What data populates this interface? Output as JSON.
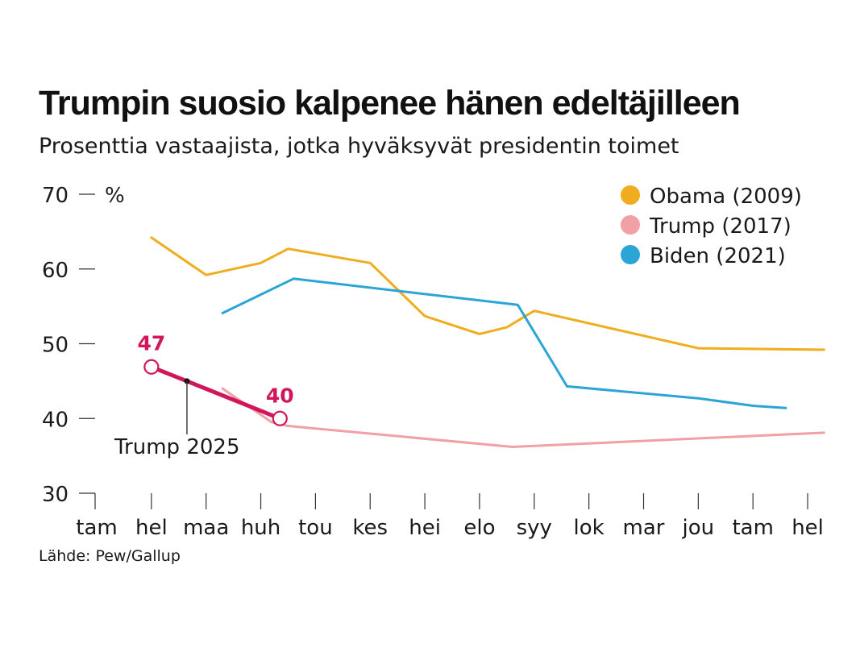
{
  "title": "Trumpin suosio kalpenee hänen edeltäjilleen",
  "subtitle": "Prosenttia vastaajista, jotka hyväksyvät presidentin toimet",
  "source": "Lähde: Pew/Gallup",
  "chart_data": {
    "type": "line",
    "ylabel": "%",
    "ylim": [
      30,
      70
    ],
    "yticks": [
      30,
      40,
      50,
      60,
      70
    ],
    "categories": [
      "tam",
      "hel",
      "maa",
      "huh",
      "tou",
      "kes",
      "hei",
      "elo",
      "syy",
      "lok",
      "mar",
      "jou",
      "tam",
      "hel"
    ],
    "grid": false,
    "legend_position": "top-right",
    "series": [
      {
        "name": "Obama (2009)",
        "color": "#f0ad1f",
        "points": [
          [
            1,
            64.2
          ],
          [
            2,
            59.2
          ],
          [
            3,
            60.8
          ],
          [
            3.5,
            62.7
          ],
          [
            5,
            60.8
          ],
          [
            6,
            53.7
          ],
          [
            7,
            51.3
          ],
          [
            7.5,
            52.2
          ],
          [
            8,
            54.4
          ],
          [
            11,
            49.4
          ],
          [
            13.3,
            49.2
          ]
        ]
      },
      {
        "name": "Trump (2017)",
        "color": "#f1a1a6",
        "points": [
          [
            2.3,
            44
          ],
          [
            3.2,
            39.5
          ],
          [
            3.5,
            39
          ],
          [
            7.6,
            36.2
          ],
          [
            13.3,
            38.1
          ]
        ]
      },
      {
        "name": "Biden (2021)",
        "color": "#2aa5d6",
        "points": [
          [
            2.3,
            54.1
          ],
          [
            3.6,
            58.7
          ],
          [
            7.7,
            55.2
          ],
          [
            8.6,
            44.3
          ],
          [
            11,
            42.7
          ],
          [
            12,
            41.7
          ],
          [
            12.6,
            41.4
          ]
        ]
      },
      {
        "name": "Trump 2025",
        "color": "#d1175c",
        "points": [
          [
            1,
            46.9
          ],
          [
            1.65,
            45
          ],
          [
            3.35,
            40
          ]
        ]
      }
    ],
    "annotations": {
      "start_value": "47",
      "end_value": "40",
      "series_label": "Trump 2025"
    }
  }
}
